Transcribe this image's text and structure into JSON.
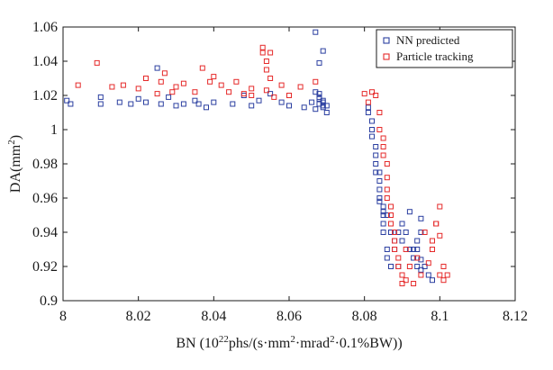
{
  "chart_data": {
    "type": "scatter",
    "xlabel": "BN (10",
    "xlabel_sup": "22",
    "xlabel_rest_1": "phs/(s·mm",
    "xlabel_sup2": "2",
    "xlabel_rest_2": "·mrad",
    "xlabel_sup3": "2",
    "xlabel_rest_3": "·0.1%BW))",
    "ylabel": "DA(mm",
    "ylabel_sup": "2",
    "ylabel_close": ")",
    "xlim": [
      8.0,
      8.12
    ],
    "ylim": [
      0.9,
      1.06
    ],
    "xticks": [
      "8",
      "8.02",
      "8.04",
      "8.06",
      "8.08",
      "8.1",
      "8.12"
    ],
    "yticks": [
      "0.9",
      "0.92",
      "0.94",
      "0.96",
      "0.98",
      "1",
      "1.02",
      "1.04",
      "1.06"
    ],
    "legend_position": "top-right",
    "grid": false,
    "series": [
      {
        "name": "NN predicted",
        "color": "#2b3fa0",
        "marker": "square-open",
        "x": [
          8.001,
          8.002,
          8.01,
          8.01,
          8.015,
          8.018,
          8.02,
          8.022,
          8.025,
          8.026,
          8.028,
          8.03,
          8.032,
          8.035,
          8.036,
          8.038,
          8.04,
          8.045,
          8.048,
          8.05,
          8.052,
          8.055,
          8.058,
          8.06,
          8.064,
          8.066,
          8.067,
          8.067,
          8.068,
          8.068,
          8.068,
          8.068,
          8.069,
          8.069,
          8.069,
          8.069,
          8.068,
          8.067,
          8.069,
          8.07,
          8.07,
          8.081,
          8.081,
          8.082,
          8.082,
          8.082,
          8.083,
          8.083,
          8.083,
          8.083,
          8.084,
          8.084,
          8.084,
          8.084,
          8.084,
          8.085,
          8.085,
          8.085,
          8.085,
          8.085,
          8.086,
          8.086,
          8.086,
          8.087,
          8.087,
          8.088,
          8.088,
          8.089,
          8.089,
          8.09,
          8.09,
          8.091,
          8.092,
          8.092,
          8.093,
          8.093,
          8.094,
          8.094,
          8.094,
          8.094,
          8.095,
          8.095,
          8.095,
          8.095,
          8.096,
          8.097,
          8.098
        ],
        "y": [
          1.017,
          1.015,
          1.019,
          1.015,
          1.016,
          1.015,
          1.018,
          1.016,
          1.036,
          1.015,
          1.019,
          1.014,
          1.015,
          1.017,
          1.015,
          1.013,
          1.016,
          1.015,
          1.02,
          1.014,
          1.017,
          1.021,
          1.016,
          1.014,
          1.013,
          1.016,
          1.012,
          1.022,
          1.019,
          1.015,
          1.018,
          1.021,
          1.013,
          1.016,
          1.014,
          1.017,
          1.039,
          1.057,
          1.046,
          1.01,
          1.014,
          1.013,
          1.01,
          1.005,
          1.0,
          0.996,
          0.99,
          0.985,
          0.98,
          0.975,
          0.975,
          0.97,
          0.965,
          0.96,
          0.958,
          0.955,
          0.952,
          0.95,
          0.945,
          0.94,
          0.95,
          0.93,
          0.925,
          0.94,
          0.92,
          0.935,
          0.93,
          0.94,
          0.92,
          0.945,
          0.935,
          0.94,
          0.952,
          0.93,
          0.925,
          0.93,
          0.935,
          0.93,
          0.925,
          0.92,
          0.948,
          0.94,
          0.924,
          0.918,
          0.92,
          0.915,
          0.912
        ]
      },
      {
        "name": "Particle tracking",
        "color": "#e52a2a",
        "marker": "square-open",
        "x": [
          8.004,
          8.009,
          8.013,
          8.016,
          8.02,
          8.022,
          8.025,
          8.026,
          8.027,
          8.029,
          8.03,
          8.032,
          8.035,
          8.037,
          8.039,
          8.04,
          8.042,
          8.044,
          8.046,
          8.048,
          8.05,
          8.05,
          8.053,
          8.053,
          8.054,
          8.054,
          8.054,
          8.055,
          8.055,
          8.056,
          8.058,
          8.06,
          8.063,
          8.067,
          8.08,
          8.081,
          8.082,
          8.083,
          8.084,
          8.084,
          8.085,
          8.085,
          8.085,
          8.086,
          8.086,
          8.086,
          8.086,
          8.087,
          8.087,
          8.087,
          8.088,
          8.088,
          8.088,
          8.089,
          8.089,
          8.09,
          8.09,
          8.091,
          8.091,
          8.092,
          8.093,
          8.094,
          8.095,
          8.096,
          8.097,
          8.098,
          8.099,
          8.1,
          8.1,
          8.101,
          8.102,
          8.1,
          8.099,
          8.098,
          8.101
        ],
        "y": [
          1.026,
          1.039,
          1.025,
          1.026,
          1.024,
          1.03,
          1.021,
          1.028,
          1.033,
          1.022,
          1.025,
          1.027,
          1.022,
          1.036,
          1.028,
          1.031,
          1.026,
          1.022,
          1.028,
          1.021,
          1.024,
          1.02,
          1.045,
          1.048,
          1.04,
          1.035,
          1.023,
          1.03,
          1.045,
          1.019,
          1.026,
          1.02,
          1.025,
          1.028,
          1.021,
          1.016,
          1.022,
          1.02,
          1.01,
          1.0,
          0.995,
          0.99,
          0.985,
          0.98,
          0.972,
          0.965,
          0.96,
          0.955,
          0.95,
          0.945,
          0.94,
          0.935,
          0.93,
          0.925,
          0.92,
          0.915,
          0.91,
          0.912,
          0.93,
          0.92,
          0.91,
          0.925,
          0.915,
          0.94,
          0.922,
          0.93,
          0.945,
          0.938,
          0.915,
          0.92,
          0.915,
          0.955,
          0.945,
          0.935,
          0.912
        ]
      }
    ]
  }
}
